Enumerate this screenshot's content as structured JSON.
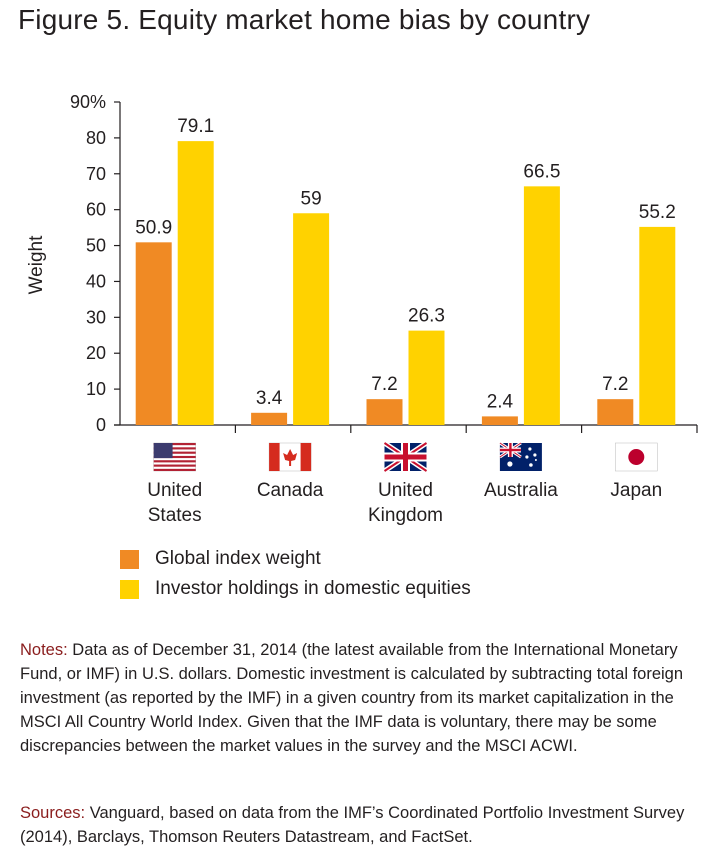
{
  "title": "Figure 5. Equity market home bias by country",
  "chart_data": {
    "type": "bar",
    "categories": [
      "United States",
      "Canada",
      "United Kingdom",
      "Australia",
      "Japan"
    ],
    "category_lines": [
      [
        "United",
        "States"
      ],
      [
        "Canada"
      ],
      [
        "United",
        "Kingdom"
      ],
      [
        "Australia"
      ],
      [
        "Japan"
      ]
    ],
    "flags": [
      "us-flag-icon",
      "canada-flag-icon",
      "uk-flag-icon",
      "australia-flag-icon",
      "japan-flag-icon"
    ],
    "series": [
      {
        "name": "Global index weight",
        "values": [
          50.9,
          3.4,
          7.2,
          2.4,
          7.2
        ],
        "color": "#f08a24"
      },
      {
        "name": "Investor holdings in domestic equities",
        "values": [
          79.1,
          59,
          26.3,
          66.5,
          55.2
        ],
        "color": "#ffd200"
      }
    ],
    "data_labels": [
      [
        "50.9",
        "3.4",
        "7.2",
        "2.4",
        "7.2"
      ],
      [
        "79.1",
        "59",
        "26.3",
        "66.5",
        "55.2"
      ]
    ],
    "ylabel": "Weight",
    "ylim": [
      0,
      90
    ],
    "yticks": [
      0,
      10,
      20,
      30,
      40,
      50,
      60,
      70,
      80,
      90
    ],
    "ytick_labels": [
      "0",
      "10",
      "20",
      "30",
      "40",
      "50",
      "60",
      "70",
      "80",
      "90%"
    ],
    "legend_position": "bottom-left",
    "grid": false
  },
  "legend": [
    {
      "label": "Global index weight",
      "color": "#f08a24"
    },
    {
      "label": "Investor holdings in domestic equities",
      "color": "#ffd200"
    }
  ],
  "notes": {
    "label": "Notes:",
    "text": " Data as of December 31, 2014 (the latest available from the International Monetary Fund, or IMF) in U.S. dollars. Domestic investment is calculated by subtracting total foreign investment (as reported by the IMF) in a given country from its market capitalization in the MSCI All Country World Index. Given that the IMF data is voluntary, there may be some discrepancies between the market values in the survey and the MSCI ACWI."
  },
  "sources": {
    "label": "Sources:",
    "text": " Vanguard, based on data from the IMF’s Coordinated Portfolio Investment Survey (2014), Barclays, Thomson Reuters Datastream, and FactSet."
  }
}
